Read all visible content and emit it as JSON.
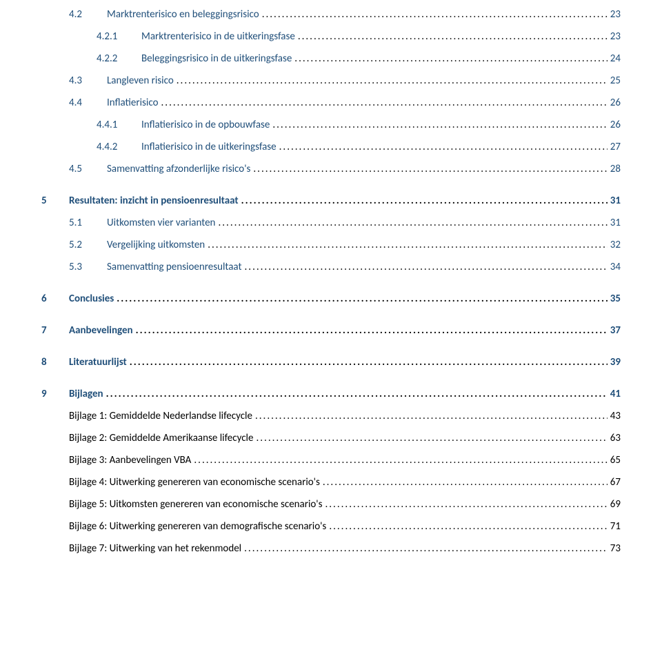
{
  "entries": [
    {
      "level": 2,
      "num": "4.2",
      "title": "Marktrenterisico en beleggingsrisico",
      "page": "23",
      "color": "blue"
    },
    {
      "level": 3,
      "num": "4.2.1",
      "title": "Marktrenterisico in de uitkeringsfase",
      "page": "23",
      "color": "blue"
    },
    {
      "level": 3,
      "num": "4.2.2",
      "title": "Beleggingsrisico in de uitkeringsfase",
      "page": "24",
      "color": "blue"
    },
    {
      "level": 2,
      "num": "4.3",
      "title": "Langleven risico",
      "page": "25",
      "color": "blue"
    },
    {
      "level": 2,
      "num": "4.4",
      "title": "Inflatierisico",
      "page": "26",
      "color": "blue"
    },
    {
      "level": 3,
      "num": "4.4.1",
      "title": "Inflatierisico in de opbouwfase",
      "page": "26",
      "color": "blue"
    },
    {
      "level": 3,
      "num": "4.4.2",
      "title": "Inflatierisico in de uitkeringsfase",
      "page": "27",
      "color": "blue"
    },
    {
      "level": 2,
      "num": "4.5",
      "title": "Samenvatting afzonderlijke risico's",
      "page": "28",
      "color": "blue"
    },
    {
      "level": 1,
      "num": "5",
      "title": "Resultaten: inzicht in pensioenresultaat",
      "page": "31",
      "color": "blue"
    },
    {
      "level": 2,
      "num": "5.1",
      "title": "Uitkomsten vier varianten",
      "page": "31",
      "color": "blue"
    },
    {
      "level": 2,
      "num": "5.2",
      "title": "Vergelijking uitkomsten",
      "page": "32",
      "color": "blue"
    },
    {
      "level": 2,
      "num": "5.3",
      "title": "Samenvatting pensioenresultaat",
      "page": "34",
      "color": "blue"
    },
    {
      "level": 1,
      "num": "6",
      "title": "Conclusies",
      "page": "35",
      "color": "blue"
    },
    {
      "level": 1,
      "num": "7",
      "title": "Aanbevelingen",
      "page": "37",
      "color": "blue"
    },
    {
      "level": 1,
      "num": "8",
      "title": "Literatuurlijst",
      "page": "39",
      "color": "blue"
    },
    {
      "level": 1,
      "num": "9",
      "title": "Bijlagen",
      "page": "41",
      "color": "blue"
    },
    {
      "level": "bijlage",
      "title": "Bijlage 1: Gemiddelde Nederlandse lifecycle",
      "page": "43",
      "color": "black"
    },
    {
      "level": "bijlage",
      "title": "Bijlage 2: Gemiddelde Amerikaanse lifecycle",
      "page": "63",
      "color": "black"
    },
    {
      "level": "bijlage",
      "title": "Bijlage 3: Aanbevelingen VBA",
      "page": "65",
      "color": "black"
    },
    {
      "level": "bijlage",
      "title": "Bijlage 4: Uitwerking genereren van economische scenario's",
      "page": "67",
      "color": "black"
    },
    {
      "level": "bijlage",
      "title": "Bijlage 5: Uitkomsten genereren van economische scenario's",
      "page": "69",
      "color": "black"
    },
    {
      "level": "bijlage",
      "title": "Bijlage 6: Uitwerking genereren van demografische scenario's",
      "page": "71",
      "color": "black"
    },
    {
      "level": "bijlage",
      "title": "Bijlage 7: Uitwerking van het rekenmodel",
      "page": "73",
      "color": "black"
    }
  ]
}
